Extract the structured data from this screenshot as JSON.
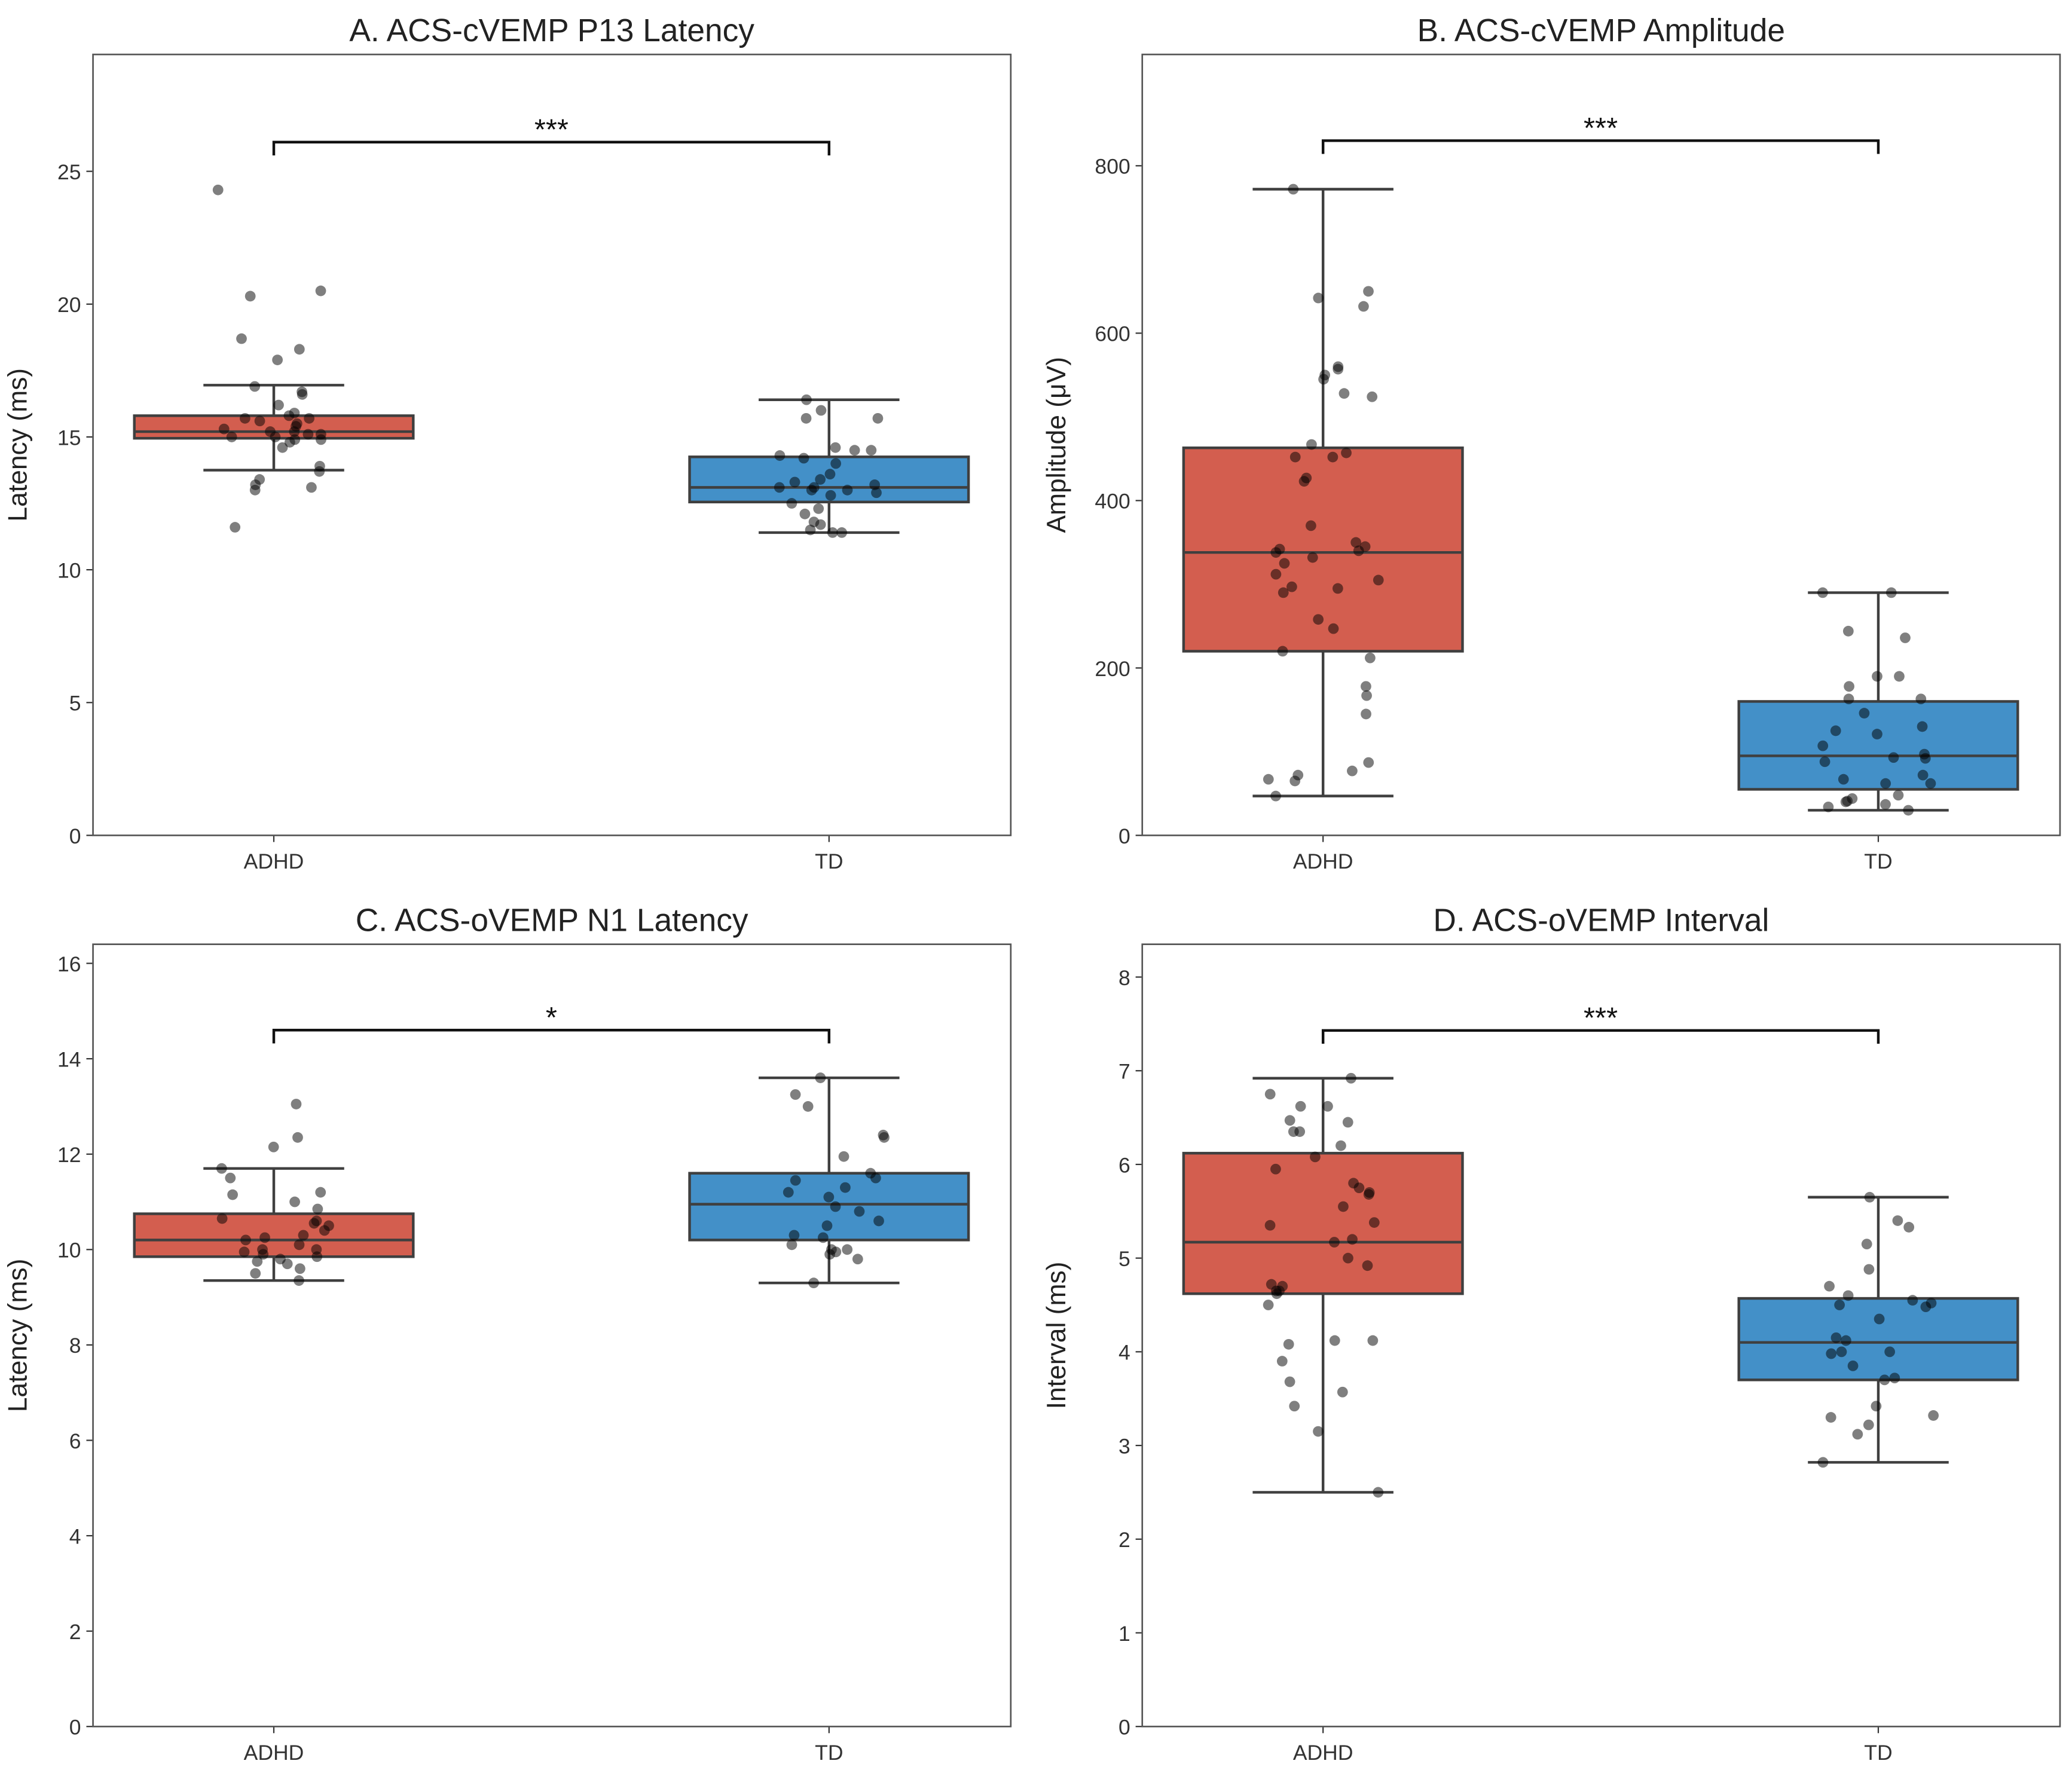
{
  "colors": {
    "ADHD": "#d35e4f",
    "TD": "#4390c8",
    "edge": "#3f3f3f",
    "point": "#000000"
  },
  "chart_data": [
    {
      "type": "box",
      "title": "A. ACS-cVEMP P13 Latency",
      "xlabel": "",
      "ylabel": "Latency (ms)",
      "categories": [
        "ADHD",
        "TD"
      ],
      "ylim": [
        0,
        29.4
      ],
      "yticks": [
        0,
        5,
        10,
        15,
        20,
        25
      ],
      "grid": false,
      "significance": {
        "label": "***",
        "y": 26.1
      },
      "boxes": [
        {
          "name": "ADHD",
          "whislo": 13.75,
          "q1": 14.95,
          "med": 15.2,
          "q3": 15.8,
          "whishi": 16.95,
          "points": [
            24.3,
            20.5,
            20.3,
            18.7,
            18.3,
            17.9,
            16.9,
            16.7,
            16.6,
            16.2,
            15.9,
            15.8,
            15.7,
            15.7,
            15.6,
            15.5,
            15.4,
            15.3,
            15.2,
            15.2,
            15.1,
            15.1,
            15.0,
            15.0,
            14.9,
            14.9,
            14.8,
            14.6,
            13.9,
            13.7,
            13.4,
            13.2,
            13.1,
            13.0,
            11.6
          ]
        },
        {
          "name": "TD",
          "whislo": 11.4,
          "q1": 12.55,
          "med": 13.1,
          "q3": 14.25,
          "whishi": 16.4,
          "points": [
            16.4,
            16.0,
            15.7,
            15.7,
            14.6,
            14.5,
            14.5,
            14.3,
            14.2,
            14.0,
            13.6,
            13.4,
            13.3,
            13.2,
            13.1,
            13.1,
            13.0,
            13.0,
            12.9,
            12.8,
            12.5,
            12.3,
            12.1,
            11.8,
            11.7,
            11.5,
            11.4,
            11.4
          ]
        }
      ]
    },
    {
      "type": "box",
      "title": "B. ACS-cVEMP Amplitude",
      "xlabel": "",
      "ylabel": "Amplitude (μV)",
      "categories": [
        "ADHD",
        "TD"
      ],
      "ylim": [
        0,
        933
      ],
      "yticks": [
        0,
        200,
        400,
        600,
        800
      ],
      "grid": false,
      "significance": {
        "label": "***",
        "y": 830
      },
      "boxes": [
        {
          "name": "ADHD",
          "whislo": 47,
          "q1": 220,
          "med": 338,
          "q3": 463,
          "whishi": 772,
          "points": [
            772,
            650,
            642,
            632,
            560,
            557,
            550,
            545,
            528,
            524,
            467,
            457,
            452,
            452,
            427,
            423,
            370,
            350,
            345,
            342,
            340,
            338,
            332,
            325,
            312,
            305,
            297,
            295,
            290,
            258,
            247,
            220,
            212,
            178,
            167,
            145,
            87,
            77,
            72,
            67,
            65,
            47
          ]
        },
        {
          "name": "TD",
          "whislo": 30,
          "q1": 55,
          "med": 95,
          "q3": 160,
          "whishi": 290,
          "points": [
            290,
            290,
            244,
            236,
            190,
            190,
            178,
            163,
            163,
            146,
            130,
            125,
            121,
            107,
            97,
            93,
            92,
            88,
            72,
            67,
            62,
            62,
            48,
            44,
            41,
            40,
            37,
            34,
            30
          ]
        }
      ]
    },
    {
      "type": "box",
      "title": "C. ACS-oVEMP N1 Latency",
      "xlabel": "",
      "ylabel": "Latency (ms)",
      "categories": [
        "ADHD",
        "TD"
      ],
      "ylim": [
        0,
        16.4
      ],
      "yticks": [
        0,
        2,
        4,
        6,
        8,
        10,
        12,
        14,
        16
      ],
      "grid": false,
      "significance": {
        "label": "*",
        "y": 14.6
      },
      "boxes": [
        {
          "name": "ADHD",
          "whislo": 9.35,
          "q1": 9.85,
          "med": 10.2,
          "q3": 10.75,
          "whishi": 11.7,
          "points": [
            13.05,
            12.35,
            12.15,
            11.7,
            11.5,
            11.2,
            11.15,
            11.0,
            10.85,
            10.65,
            10.6,
            10.55,
            10.5,
            10.4,
            10.3,
            10.25,
            10.2,
            10.1,
            10.0,
            10.0,
            9.95,
            9.9,
            9.85,
            9.8,
            9.75,
            9.7,
            9.6,
            9.5,
            9.35
          ]
        },
        {
          "name": "TD",
          "whislo": 9.3,
          "q1": 10.2,
          "med": 10.95,
          "q3": 11.6,
          "whishi": 13.6,
          "points": [
            13.6,
            13.25,
            13.0,
            12.4,
            12.35,
            11.95,
            11.6,
            11.5,
            11.45,
            11.3,
            11.2,
            11.1,
            10.9,
            10.8,
            10.6,
            10.5,
            10.3,
            10.25,
            10.1,
            10.0,
            10.0,
            9.95,
            9.9,
            9.8,
            9.3
          ]
        }
      ]
    },
    {
      "type": "box",
      "title": "D. ACS-oVEMP Interval",
      "xlabel": "",
      "ylabel": "Interval (ms)",
      "categories": [
        "ADHD",
        "TD"
      ],
      "ylim": [
        0,
        8.35
      ],
      "yticks": [
        0,
        1,
        2,
        3,
        4,
        5,
        6,
        7,
        8
      ],
      "grid": false,
      "significance": {
        "label": "***",
        "y": 7.43
      },
      "boxes": [
        {
          "name": "ADHD",
          "whislo": 2.5,
          "q1": 4.62,
          "med": 5.17,
          "q3": 6.12,
          "whishi": 6.92,
          "points": [
            6.92,
            6.75,
            6.62,
            6.62,
            6.47,
            6.45,
            6.35,
            6.35,
            6.2,
            6.08,
            5.95,
            5.8,
            5.75,
            5.7,
            5.68,
            5.55,
            5.38,
            5.35,
            5.2,
            5.17,
            5.0,
            4.92,
            4.72,
            4.7,
            4.65,
            4.65,
            4.62,
            4.5,
            4.12,
            4.12,
            4.08,
            3.9,
            3.68,
            3.57,
            3.42,
            3.15,
            2.5
          ]
        },
        {
          "name": "TD",
          "whislo": 2.82,
          "q1": 3.7,
          "med": 4.1,
          "q3": 4.57,
          "whishi": 5.65,
          "points": [
            5.65,
            5.4,
            5.33,
            5.15,
            4.88,
            4.7,
            4.6,
            4.55,
            4.52,
            4.5,
            4.48,
            4.35,
            4.15,
            4.12,
            4.0,
            4.0,
            3.98,
            3.85,
            3.72,
            3.7,
            3.42,
            3.32,
            3.3,
            3.22,
            3.12,
            2.82
          ]
        }
      ]
    }
  ]
}
